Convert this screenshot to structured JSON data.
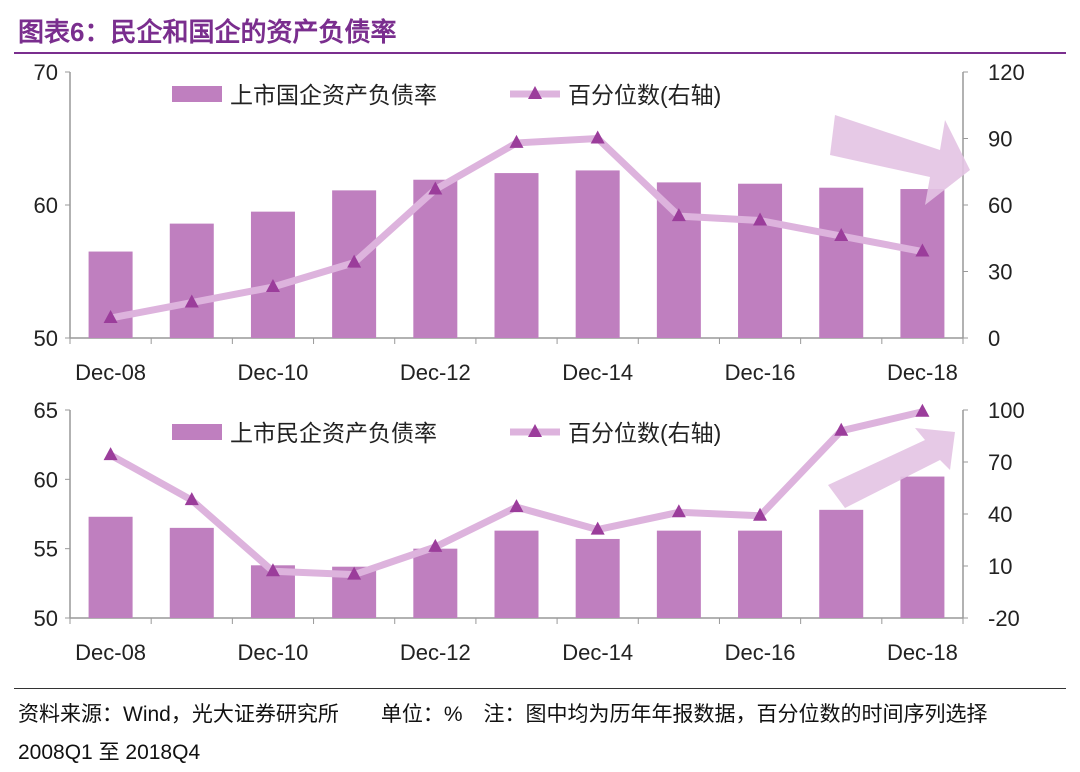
{
  "title": "图表6：民企和国企的资产负债率",
  "footer": "资料来源：Wind，光大证券研究所　　单位：%　注：图中均为历年年报数据，百分位数的时间序列选择 2008Q1 至 2018Q4",
  "colors": {
    "bar": "#bf7fbf",
    "line": "#ddb3dd",
    "marker": "#9b3d9b",
    "arrow": "#e3c3e3",
    "title": "#7a2e8e"
  },
  "chart_data": [
    {
      "type": "bar+line",
      "categories": [
        "Dec-08",
        "Dec-09",
        "Dec-10",
        "Dec-11",
        "Dec-12",
        "Dec-13",
        "Dec-14",
        "Dec-15",
        "Dec-16",
        "Dec-17",
        "Dec-18"
      ],
      "tick_labels": [
        "Dec-08",
        "Dec-10",
        "Dec-12",
        "Dec-14",
        "Dec-16",
        "Dec-18"
      ],
      "series": [
        {
          "name": "上市国企资产负债率",
          "axis": "left",
          "type": "bar",
          "values": [
            56.5,
            58.6,
            59.5,
            61.1,
            61.9,
            62.4,
            62.6,
            61.7,
            61.6,
            61.3,
            61.2
          ]
        },
        {
          "name": "百分位数(右轴)",
          "axis": "right",
          "type": "line",
          "marker": "triangle",
          "values": [
            9,
            16,
            23,
            34,
            67,
            88,
            90,
            55,
            53,
            46,
            39
          ]
        }
      ],
      "ylim_left": [
        50,
        70
      ],
      "yticks_left": [
        50,
        60,
        70
      ],
      "ylim_right": [
        0,
        120
      ],
      "yticks_right": [
        0,
        30,
        60,
        90,
        120
      ],
      "legend": "top",
      "annotation": "arrow-down-right"
    },
    {
      "type": "bar+line",
      "categories": [
        "Dec-08",
        "Dec-09",
        "Dec-10",
        "Dec-11",
        "Dec-12",
        "Dec-13",
        "Dec-14",
        "Dec-15",
        "Dec-16",
        "Dec-17",
        "Dec-18"
      ],
      "tick_labels": [
        "Dec-08",
        "Dec-10",
        "Dec-12",
        "Dec-14",
        "Dec-16",
        "Dec-18"
      ],
      "series": [
        {
          "name": "上市民企资产负债率",
          "axis": "left",
          "type": "bar",
          "values": [
            57.3,
            56.5,
            53.8,
            53.7,
            55.0,
            56.3,
            55.7,
            56.3,
            56.3,
            57.8,
            60.2
          ]
        },
        {
          "name": "百分位数(右轴)",
          "axis": "right",
          "type": "line",
          "marker": "triangle",
          "values": [
            74,
            48,
            7,
            5,
            21,
            44,
            31,
            41,
            39,
            88,
            99
          ]
        }
      ],
      "ylim_left": [
        50,
        65
      ],
      "yticks_left": [
        50,
        55,
        60,
        65
      ],
      "ylim_right": [
        -20,
        100
      ],
      "yticks_right": [
        -20,
        10,
        40,
        70,
        100
      ],
      "legend": "top",
      "annotation": "arrow-up-right"
    }
  ]
}
